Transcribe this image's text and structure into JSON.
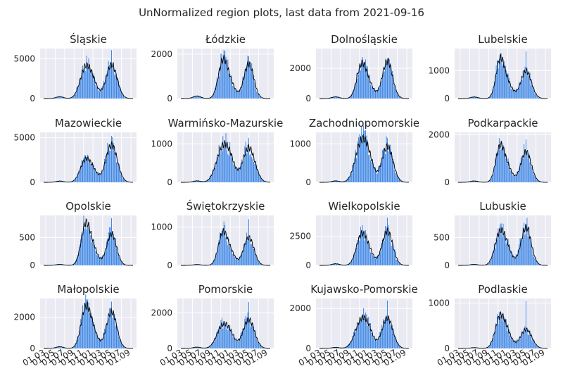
{
  "figure": {
    "suptitle": "UnNormalized region plots, last data from 2021-09-16",
    "bar_color": "#3b86e6",
    "line_color": "#000000",
    "axes_bg": "#eaeaf2"
  },
  "chart_data": {
    "type": "bar",
    "shared_x": {
      "tick_labels": [
        "01.03",
        "01.05",
        "01.07",
        "01.09",
        "01.11",
        "01.01",
        "01.03",
        "01.05",
        "01.07",
        "01.09"
      ],
      "note_range": [
        "2020-03",
        "2021-09"
      ]
    },
    "panels": [
      {
        "title": "Śląskie",
        "yticks": [
          0,
          5000
        ],
        "ymax": 6300,
        "w1": [
          4100,
          2.9
        ],
        "w2": [
          4500,
          2.9
        ],
        "base": 250,
        "spike": 6100
      },
      {
        "title": "Łódzkie",
        "yticks": [
          0,
          2000
        ],
        "ymax": 2250,
        "w1": [
          1750,
          2.4
        ],
        "w2": [
          1650,
          2.6
        ],
        "base": 120,
        "spike": 1900
      },
      {
        "title": "Dolnośląskie",
        "yticks": [
          0,
          2000
        ],
        "ymax": 3300,
        "w1": [
          2300,
          2.5
        ],
        "w2": [
          2600,
          2.7
        ],
        "base": 120,
        "spike": 2650
      },
      {
        "title": "Lubelskie",
        "yticks": [
          0,
          1000
        ],
        "ymax": 1800,
        "w1": [
          1450,
          2.2
        ],
        "w2": [
          1050,
          2.8
        ],
        "base": 60,
        "spike": 1700
      },
      {
        "title": "Mazowieckie",
        "yticks": [
          0,
          5000
        ],
        "ymax": 5600,
        "w1": [
          2600,
          2.8
        ],
        "w2": [
          4400,
          3.0
        ],
        "base": 150,
        "spike": 5200
      },
      {
        "title": "Warmińsko-Mazurskie",
        "yticks": [
          0,
          1000
        ],
        "ymax": 1300,
        "w1": [
          960,
          3.4
        ],
        "w2": [
          950,
          3.2
        ],
        "base": 40,
        "spike": 1150
      },
      {
        "title": "Zachodniopomorskie",
        "yticks": [
          0,
          1000
        ],
        "ymax": 1300,
        "w1": [
          1100,
          3.2
        ],
        "w2": [
          980,
          2.9
        ],
        "base": 40,
        "spike": 1150
      },
      {
        "title": "Podkarpackie",
        "yticks": [
          0,
          2000
        ],
        "ymax": 2100,
        "w1": [
          1550,
          2.3
        ],
        "w2": [
          1350,
          2.7
        ],
        "base": 60,
        "spike": 1800
      },
      {
        "title": "Opolskie",
        "yticks": [
          0,
          500
        ],
        "ymax": 900,
        "w1": [
          760,
          2.4
        ],
        "w2": [
          600,
          2.6
        ],
        "base": 20,
        "spike": 850
      },
      {
        "title": "Świętokrzyskie",
        "yticks": [
          0,
          1000
        ],
        "ymax": 1300,
        "w1": [
          860,
          2.4
        ],
        "w2": [
          760,
          2.7
        ],
        "base": 25,
        "spike": 1200
      },
      {
        "title": "Wielkopolskie",
        "yticks": [
          0,
          2500
        ],
        "ymax": 4300,
        "w1": [
          2700,
          2.7
        ],
        "w2": [
          3100,
          2.8
        ],
        "base": 150,
        "spike": 4100
      },
      {
        "title": "Lubuskie",
        "yticks": [
          0,
          500
        ],
        "ymax": 900,
        "w1": [
          620,
          2.7
        ],
        "w2": [
          720,
          2.7
        ],
        "base": 20,
        "spike": 750
      },
      {
        "title": "Małopolskie",
        "yticks": [
          0,
          2000
        ],
        "ymax": 3200,
        "w1": [
          2700,
          2.5
        ],
        "w2": [
          2500,
          2.7
        ],
        "base": 120,
        "spike": 3000
      },
      {
        "title": "Pomorskie",
        "yticks": [
          0,
          2000
        ],
        "ymax": 2800,
        "w1": [
          1350,
          3.2
        ],
        "w2": [
          1700,
          3.0
        ],
        "base": 80,
        "spike": 2600
      },
      {
        "title": "Kujawsko-Pomorskie",
        "yticks": [
          0,
          2000
        ],
        "ymax": 2500,
        "w1": [
          1500,
          3.3
        ],
        "w2": [
          1600,
          2.9
        ],
        "base": 60,
        "spike": 2400
      },
      {
        "title": "Podlaskie",
        "yticks": [
          0,
          1000
        ],
        "ymax": 1100,
        "w1": [
          720,
          2.6
        ],
        "w2": [
          440,
          3.0
        ],
        "base": 20,
        "spike": 1050
      }
    ]
  }
}
